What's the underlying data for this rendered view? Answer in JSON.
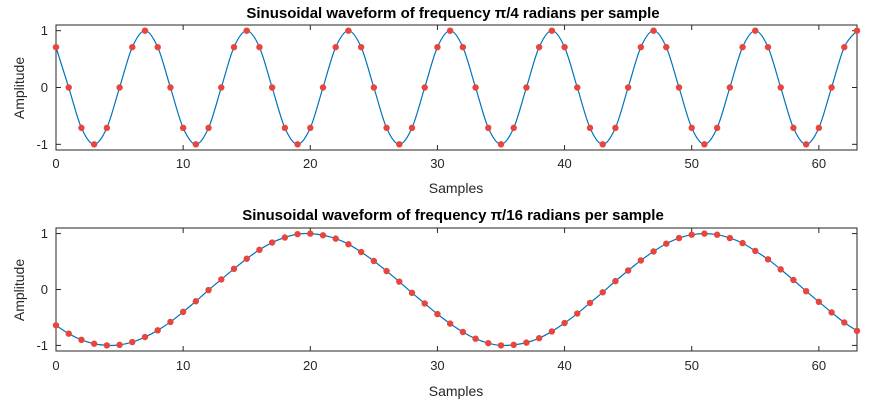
{
  "chart_data": [
    {
      "type": "line",
      "title": "Sinusoidal waveform of frequency π/4 radians per sample",
      "xlabel": "Samples",
      "ylabel": "Amplitude",
      "xlim": [
        0,
        63
      ],
      "ylim": [
        -1.1,
        1.1
      ],
      "xticks": [
        0,
        10,
        20,
        30,
        40,
        50,
        60
      ],
      "yticks": [
        1,
        0,
        -1
      ],
      "x_samples": [
        0,
        1,
        2,
        3,
        4,
        5,
        6,
        7,
        8,
        9,
        10,
        11,
        12,
        13,
        14,
        15,
        16,
        17,
        18,
        19,
        20,
        21,
        22,
        23,
        24,
        25,
        26,
        27,
        28,
        29,
        30,
        31,
        32,
        33,
        34,
        35,
        36,
        37,
        38,
        39,
        40,
        41,
        42,
        43,
        44,
        45,
        46,
        47,
        48,
        49,
        50,
        51,
        52,
        53,
        54,
        55,
        56,
        57,
        58,
        59,
        60,
        61,
        62,
        63
      ],
      "series": [
        {
          "style": "line",
          "values": [
            0.71,
            0.0,
            -0.71,
            -1.0,
            -0.71,
            0.0,
            0.71,
            1.0,
            0.71,
            0.0,
            -0.71,
            -1.0,
            -0.71,
            0.0,
            0.71,
            1.0,
            0.71,
            0.0,
            -0.71,
            -1.0,
            -0.71,
            0.0,
            0.71,
            1.0,
            0.71,
            0.0,
            -0.71,
            -1.0,
            -0.71,
            0.0,
            0.71,
            1.0,
            0.71,
            0.0,
            -0.71,
            -1.0,
            -0.71,
            0.0,
            0.71,
            1.0,
            0.71,
            0.0,
            -0.71,
            -1.0,
            -0.71,
            0.0,
            0.71,
            1.0,
            0.71,
            0.0,
            -0.71,
            -1.0,
            -0.71,
            0.0,
            0.71,
            1.0,
            0.71,
            0.0,
            -0.71,
            -1.0,
            -0.71,
            0.0,
            0.71,
            1.0
          ]
        },
        {
          "style": "markers",
          "values": [
            0.71,
            0.0,
            -0.71,
            -1.0,
            -0.71,
            0.0,
            0.71,
            1.0,
            0.71,
            0.0,
            -0.71,
            -1.0,
            -0.71,
            0.0,
            0.71,
            1.0,
            0.71,
            0.0,
            -0.71,
            -1.0,
            -0.71,
            0.0,
            0.71,
            1.0,
            0.71,
            0.0,
            -0.71,
            -1.0,
            -0.71,
            0.0,
            0.71,
            1.0,
            0.71,
            0.0,
            -0.71,
            -1.0,
            -0.71,
            0.0,
            0.71,
            1.0,
            0.71,
            0.0,
            -0.71,
            -1.0,
            -0.71,
            0.0,
            0.71,
            1.0,
            0.71,
            0.0,
            -0.71,
            -1.0,
            -0.71,
            0.0,
            0.71,
            1.0,
            0.71,
            0.0,
            -0.71,
            -1.0,
            -0.71,
            0.0,
            0.71,
            1.0
          ]
        }
      ],
      "line_color": "#0072BD",
      "marker_color": "#E8453C",
      "grid": false
    },
    {
      "type": "line",
      "title": "Sinusoidal waveform of frequency π/16 radians per sample",
      "xlabel": "Samples",
      "ylabel": "Amplitude",
      "xlim": [
        0,
        63
      ],
      "ylim": [
        -1.1,
        1.1
      ],
      "xticks": [
        0,
        10,
        20,
        30,
        40,
        50,
        60
      ],
      "yticks": [
        1,
        0,
        -1
      ],
      "x_samples": [
        0,
        1,
        2,
        3,
        4,
        5,
        6,
        7,
        8,
        9,
        10,
        11,
        12,
        13,
        14,
        15,
        16,
        17,
        18,
        19,
        20,
        21,
        22,
        23,
        24,
        25,
        26,
        27,
        28,
        29,
        30,
        31,
        32,
        33,
        34,
        35,
        36,
        37,
        38,
        39,
        40,
        41,
        42,
        43,
        44,
        45,
        46,
        47,
        48,
        49,
        50,
        51,
        52,
        53,
        54,
        55,
        56,
        57,
        58,
        59,
        60,
        61,
        62,
        63
      ],
      "series": [
        {
          "style": "line",
          "values": [
            -0.64,
            -0.79,
            -0.9,
            -0.97,
            -1.0,
            -0.99,
            -0.94,
            -0.85,
            -0.73,
            -0.58,
            -0.4,
            -0.21,
            -0.01,
            0.18,
            0.37,
            0.55,
            0.71,
            0.84,
            0.93,
            0.99,
            1.0,
            0.97,
            0.91,
            0.81,
            0.67,
            0.51,
            0.33,
            0.14,
            -0.06,
            -0.25,
            -0.44,
            -0.61,
            -0.76,
            -0.88,
            -0.96,
            -1.0,
            -0.99,
            -0.95,
            -0.87,
            -0.75,
            -0.6,
            -0.43,
            -0.24,
            -0.05,
            0.15,
            0.34,
            0.52,
            0.68,
            0.82,
            0.92,
            0.98,
            1.0,
            0.98,
            0.92,
            0.83,
            0.69,
            0.54,
            0.36,
            0.17,
            -0.03,
            -0.22,
            -0.41,
            -0.59,
            -0.74
          ]
        },
        {
          "style": "markers",
          "values": [
            -0.64,
            -0.79,
            -0.9,
            -0.97,
            -1.0,
            -0.99,
            -0.94,
            -0.85,
            -0.73,
            -0.58,
            -0.4,
            -0.21,
            -0.01,
            0.18,
            0.37,
            0.55,
            0.71,
            0.84,
            0.93,
            0.99,
            1.0,
            0.97,
            0.91,
            0.81,
            0.67,
            0.51,
            0.33,
            0.14,
            -0.06,
            -0.25,
            -0.44,
            -0.61,
            -0.76,
            -0.88,
            -0.96,
            -1.0,
            -0.99,
            -0.95,
            -0.87,
            -0.75,
            -0.6,
            -0.43,
            -0.24,
            -0.05,
            0.15,
            0.34,
            0.52,
            0.68,
            0.82,
            0.92,
            0.98,
            1.0,
            0.98,
            0.92,
            0.83,
            0.69,
            0.54,
            0.36,
            0.17,
            -0.03,
            -0.22,
            -0.41,
            -0.59,
            -0.74
          ]
        }
      ],
      "line_color": "#0072BD",
      "marker_color": "#E8453C",
      "grid": false
    }
  ]
}
